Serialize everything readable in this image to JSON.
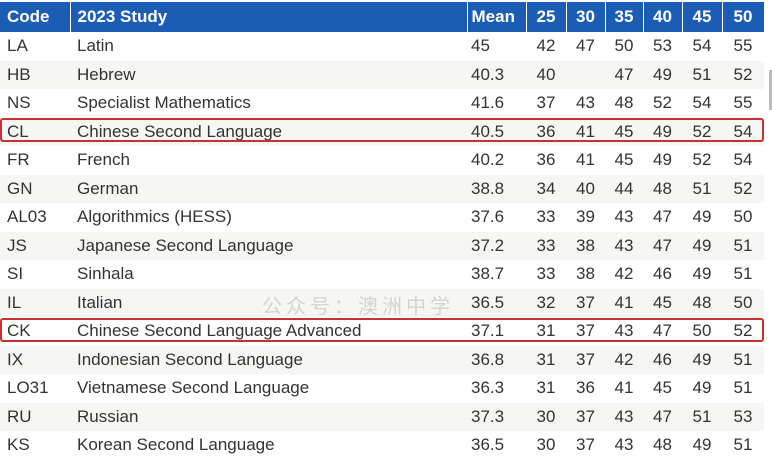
{
  "headers": [
    "Code",
    "2023 Study",
    "Mean",
    "25",
    "30",
    "35",
    "40",
    "45",
    "50"
  ],
  "rows": [
    [
      "LA",
      "Latin",
      "45",
      "42",
      "47",
      "50",
      "53",
      "54",
      "55"
    ],
    [
      "HB",
      "Hebrew",
      "40.3",
      "40",
      "",
      "47",
      "49",
      "51",
      "52"
    ],
    [
      "NS",
      "Specialist Mathematics",
      "41.6",
      "37",
      "43",
      "48",
      "52",
      "54",
      "55"
    ],
    [
      "CL",
      "Chinese Second Language",
      "40.5",
      "36",
      "41",
      "45",
      "49",
      "52",
      "54"
    ],
    [
      "FR",
      "French",
      "40.2",
      "36",
      "41",
      "45",
      "49",
      "52",
      "54"
    ],
    [
      "GN",
      "German",
      "38.8",
      "34",
      "40",
      "44",
      "48",
      "51",
      "52"
    ],
    [
      "AL03",
      "Algorithmics (HESS)",
      "37.6",
      "33",
      "39",
      "43",
      "47",
      "49",
      "50"
    ],
    [
      "JS",
      "Japanese Second Language",
      "37.2",
      "33",
      "38",
      "43",
      "47",
      "49",
      "51"
    ],
    [
      "SI",
      "Sinhala",
      "38.7",
      "33",
      "38",
      "42",
      "46",
      "49",
      "51"
    ],
    [
      "IL",
      "Italian",
      "36.5",
      "32",
      "37",
      "41",
      "45",
      "48",
      "50"
    ],
    [
      "CK",
      "Chinese Second Language Advanced",
      "37.1",
      "31",
      "37",
      "43",
      "47",
      "50",
      "52"
    ],
    [
      "IX",
      "Indonesian Second Language",
      "36.8",
      "31",
      "37",
      "42",
      "46",
      "49",
      "51"
    ],
    [
      "LO31",
      "Vietnamese Second Language",
      "36.3",
      "31",
      "36",
      "41",
      "45",
      "49",
      "51"
    ],
    [
      "RU",
      "Russian",
      "37.3",
      "30",
      "37",
      "43",
      "47",
      "51",
      "53"
    ],
    [
      "KS",
      "Korean Second Language",
      "36.5",
      "30",
      "37",
      "43",
      "48",
      "49",
      "51"
    ]
  ],
  "highlighted_codes": [
    "CL",
    "CK"
  ],
  "colors": {
    "header": "#1b5db5",
    "highlight_border": "#c8312f"
  },
  "watermark": "公众号：澳洲中学"
}
